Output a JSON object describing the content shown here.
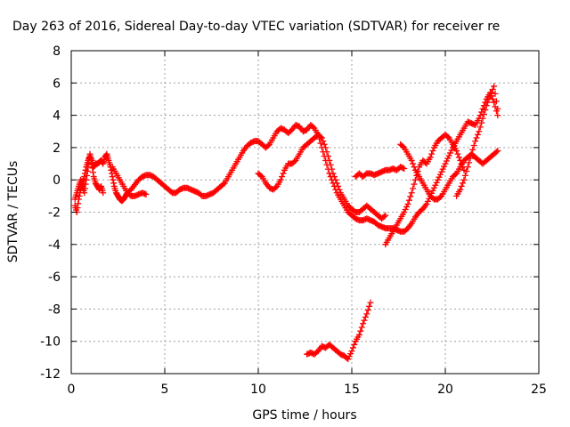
{
  "chart_data": {
    "type": "scatter",
    "title": "Day 263 of 2016, Sidereal Day-to-day VTEC variation (SDTVAR) for receiver re",
    "xlabel": "GPS time / hours",
    "ylabel": "SDTVAR / TECUs",
    "xlim": [
      0,
      25
    ],
    "ylim": [
      -12,
      8
    ],
    "xticks": [
      0,
      5,
      10,
      15,
      20,
      25
    ],
    "yticks": [
      -12,
      -10,
      -8,
      -6,
      -4,
      -2,
      0,
      2,
      4,
      6,
      8
    ],
    "grid": true,
    "legend": "none",
    "marker": "plus",
    "series_color": "#ff0000",
    "series": [
      {
        "x": [
          0.2,
          0.3,
          0.4,
          0.5,
          0.6,
          0.7,
          0.8,
          0.9,
          1.0,
          1.1,
          1.2,
          1.3,
          1.4,
          1.5,
          1.6,
          1.7,
          1.8,
          1.9,
          2.0,
          2.1,
          2.2,
          2.3,
          2.4,
          2.5,
          2.6,
          2.7,
          2.8,
          2.9,
          3.0,
          3.2,
          3.4,
          3.6,
          3.8,
          4.0,
          4.2,
          4.4,
          4.6,
          4.8,
          5.0,
          5.2,
          5.4,
          5.6,
          5.8,
          6.0,
          6.2,
          6.4,
          6.6,
          6.8,
          7.0,
          7.2,
          7.4,
          7.6,
          7.8,
          8.0,
          8.2,
          8.4,
          8.6,
          8.8,
          9.0,
          9.2,
          9.4,
          9.6,
          9.8,
          10.0,
          10.2,
          10.4,
          10.6,
          10.8,
          11.0,
          11.2,
          11.4,
          11.6,
          11.8,
          12.0,
          12.2,
          12.4,
          12.6,
          12.8,
          13.0,
          13.2,
          13.4,
          13.6,
          13.8,
          14.0,
          14.2,
          14.4,
          14.6,
          14.8,
          15.0,
          15.2,
          15.4,
          15.6,
          15.8,
          16.0,
          16.2,
          16.4,
          16.6,
          16.8,
          17.0,
          17.2,
          17.4,
          17.6,
          17.8,
          18.0,
          18.2,
          18.4,
          18.6,
          18.8,
          19.0,
          19.2,
          19.4,
          19.6,
          19.8,
          20.0,
          20.2,
          20.4,
          20.6,
          20.8,
          21.0,
          21.2,
          21.4,
          21.6,
          21.8,
          22.0,
          22.2,
          22.4,
          22.6,
          22.8
        ],
        "y": [
          -1.6,
          -2.0,
          -1.2,
          -0.6,
          -0.2,
          0.2,
          0.8,
          1.2,
          1.5,
          1.2,
          0.8,
          1.0,
          1.0,
          1.1,
          1.2,
          1.0,
          1.4,
          1.6,
          1.2,
          0.8,
          0.2,
          -0.4,
          -0.8,
          -1.0,
          -1.2,
          -1.3,
          -1.2,
          -1.0,
          -0.8,
          -0.6,
          -0.3,
          0.0,
          0.2,
          0.3,
          0.3,
          0.2,
          0.0,
          -0.2,
          -0.4,
          -0.6,
          -0.8,
          -0.8,
          -0.6,
          -0.5,
          -0.5,
          -0.6,
          -0.7,
          -0.8,
          -1.0,
          -1.0,
          -0.9,
          -0.8,
          -0.6,
          -0.4,
          -0.2,
          0.2,
          0.6,
          1.0,
          1.4,
          1.8,
          2.1,
          2.3,
          2.4,
          2.4,
          2.2,
          2.0,
          2.2,
          2.6,
          3.0,
          3.2,
          3.1,
          2.9,
          3.1,
          3.4,
          3.3,
          3.0,
          3.1,
          3.4,
          3.2,
          2.8,
          2.0,
          1.2,
          0.4,
          -0.2,
          -0.8,
          -1.2,
          -1.6,
          -2.0,
          -2.2,
          -2.4,
          -2.5,
          -2.5,
          -2.4,
          -2.5,
          -2.6,
          -2.8,
          -2.9,
          -3.0,
          -3.0,
          -3.0,
          -3.1,
          -3.2,
          -3.2,
          -3.0,
          -2.7,
          -2.3,
          -2.0,
          -1.8,
          -1.5,
          -1.0,
          -0.5,
          0.0,
          0.5,
          1.0,
          1.5,
          2.0,
          2.4,
          2.8,
          3.2,
          3.6,
          3.5,
          3.4,
          3.8,
          4.4,
          5.0,
          5.4,
          4.8,
          4.0
        ]
      },
      {
        "x": [
          0.2,
          0.3,
          0.4,
          0.5,
          0.6,
          0.7,
          0.8,
          0.9,
          1.0,
          1.1,
          1.2,
          1.3,
          1.4,
          1.5,
          1.6,
          1.7
        ],
        "y": [
          -1.2,
          -0.8,
          -0.4,
          0.0,
          -0.4,
          -0.8,
          0.0,
          0.8,
          1.6,
          1.0,
          0.2,
          -0.2,
          -0.4,
          -0.6,
          -0.4,
          -0.8
        ]
      },
      {
        "x": [
          2.2,
          2.4,
          2.6,
          2.8,
          3.0,
          3.2,
          3.4,
          3.6,
          3.8,
          4.0
        ],
        "y": [
          0.8,
          0.4,
          0.0,
          -0.4,
          -0.8,
          -1.0,
          -1.0,
          -0.9,
          -0.8,
          -0.9
        ]
      },
      {
        "x": [
          10.0,
          10.2,
          10.4,
          10.6,
          10.8,
          11.0,
          11.2,
          11.4,
          11.6,
          11.8,
          12.0,
          12.2,
          12.4,
          12.6,
          12.8,
          13.0,
          13.2,
          13.4,
          13.6,
          13.8,
          14.0,
          14.2,
          14.4,
          14.6,
          14.8,
          15.0,
          15.2,
          15.4,
          15.6,
          15.8,
          16.0,
          16.2,
          16.4,
          16.6,
          16.8
        ],
        "y": [
          0.4,
          0.2,
          -0.2,
          -0.5,
          -0.6,
          -0.4,
          0.0,
          0.6,
          1.0,
          1.0,
          1.2,
          1.6,
          2.0,
          2.2,
          2.4,
          2.6,
          2.8,
          2.6,
          2.0,
          1.2,
          0.4,
          -0.2,
          -0.8,
          -1.2,
          -1.6,
          -1.8,
          -2.0,
          -2.0,
          -1.8,
          -1.6,
          -1.8,
          -2.0,
          -2.2,
          -2.4,
          -2.2
        ]
      },
      {
        "x": [
          15.2,
          15.4,
          15.6,
          15.8,
          16.0,
          16.2,
          16.4,
          16.6,
          16.8,
          17.0,
          17.2,
          17.4,
          17.6,
          17.8
        ],
        "y": [
          0.2,
          0.4,
          0.2,
          0.4,
          0.4,
          0.3,
          0.4,
          0.5,
          0.6,
          0.6,
          0.7,
          0.6,
          0.8,
          0.7
        ]
      },
      {
        "x": [
          17.6,
          17.8,
          18.0,
          18.2,
          18.4,
          18.6,
          18.8,
          19.0,
          19.2,
          19.4,
          19.6,
          19.8,
          20.0,
          20.2,
          20.4,
          20.6,
          20.8,
          21.0,
          21.2,
          21.4,
          21.6,
          21.8,
          22.0,
          22.2,
          22.4,
          22.6,
          22.8
        ],
        "y": [
          2.2,
          2.0,
          1.6,
          1.2,
          0.6,
          0.2,
          -0.2,
          -0.6,
          -1.0,
          -1.2,
          -1.2,
          -1.0,
          -0.6,
          -0.2,
          0.2,
          0.4,
          0.8,
          1.2,
          1.4,
          1.6,
          1.4,
          1.2,
          1.0,
          1.2,
          1.4,
          1.6,
          1.8
        ]
      },
      {
        "x": [
          16.8,
          17.0,
          17.2,
          17.4,
          17.6,
          17.8,
          18.0,
          18.2,
          18.4,
          18.6,
          18.8,
          19.0,
          19.2,
          19.4,
          19.6,
          19.8,
          20.0,
          20.2,
          20.4,
          20.6,
          20.8,
          21.0
        ],
        "y": [
          -4.0,
          -3.6,
          -3.2,
          -2.8,
          -2.4,
          -2.0,
          -1.5,
          -0.8,
          0.0,
          0.8,
          1.2,
          1.0,
          1.4,
          2.0,
          2.4,
          2.6,
          2.8,
          2.6,
          2.2,
          1.8,
          1.2,
          0.6
        ]
      },
      {
        "x": [
          20.6,
          20.8,
          21.0,
          21.2,
          21.4,
          21.6,
          21.8,
          22.0,
          22.2,
          22.4,
          22.6,
          22.8
        ],
        "y": [
          -1.0,
          -0.6,
          0.0,
          0.8,
          1.6,
          2.4,
          3.0,
          3.8,
          4.6,
          5.2,
          5.8,
          4.4
        ]
      },
      {
        "x": [
          12.6,
          12.8,
          13.0,
          13.2,
          13.4,
          13.6,
          13.8,
          14.0,
          14.2,
          14.4,
          14.6,
          14.8,
          15.0,
          15.2,
          15.4,
          15.6,
          15.8,
          16.0
        ],
        "y": [
          -10.8,
          -10.7,
          -10.8,
          -10.6,
          -10.3,
          -10.4,
          -10.2,
          -10.4,
          -10.6,
          -10.8,
          -10.9,
          -11.1,
          -10.6,
          -10.0,
          -9.6,
          -8.9,
          -8.3,
          -7.6
        ]
      }
    ]
  }
}
